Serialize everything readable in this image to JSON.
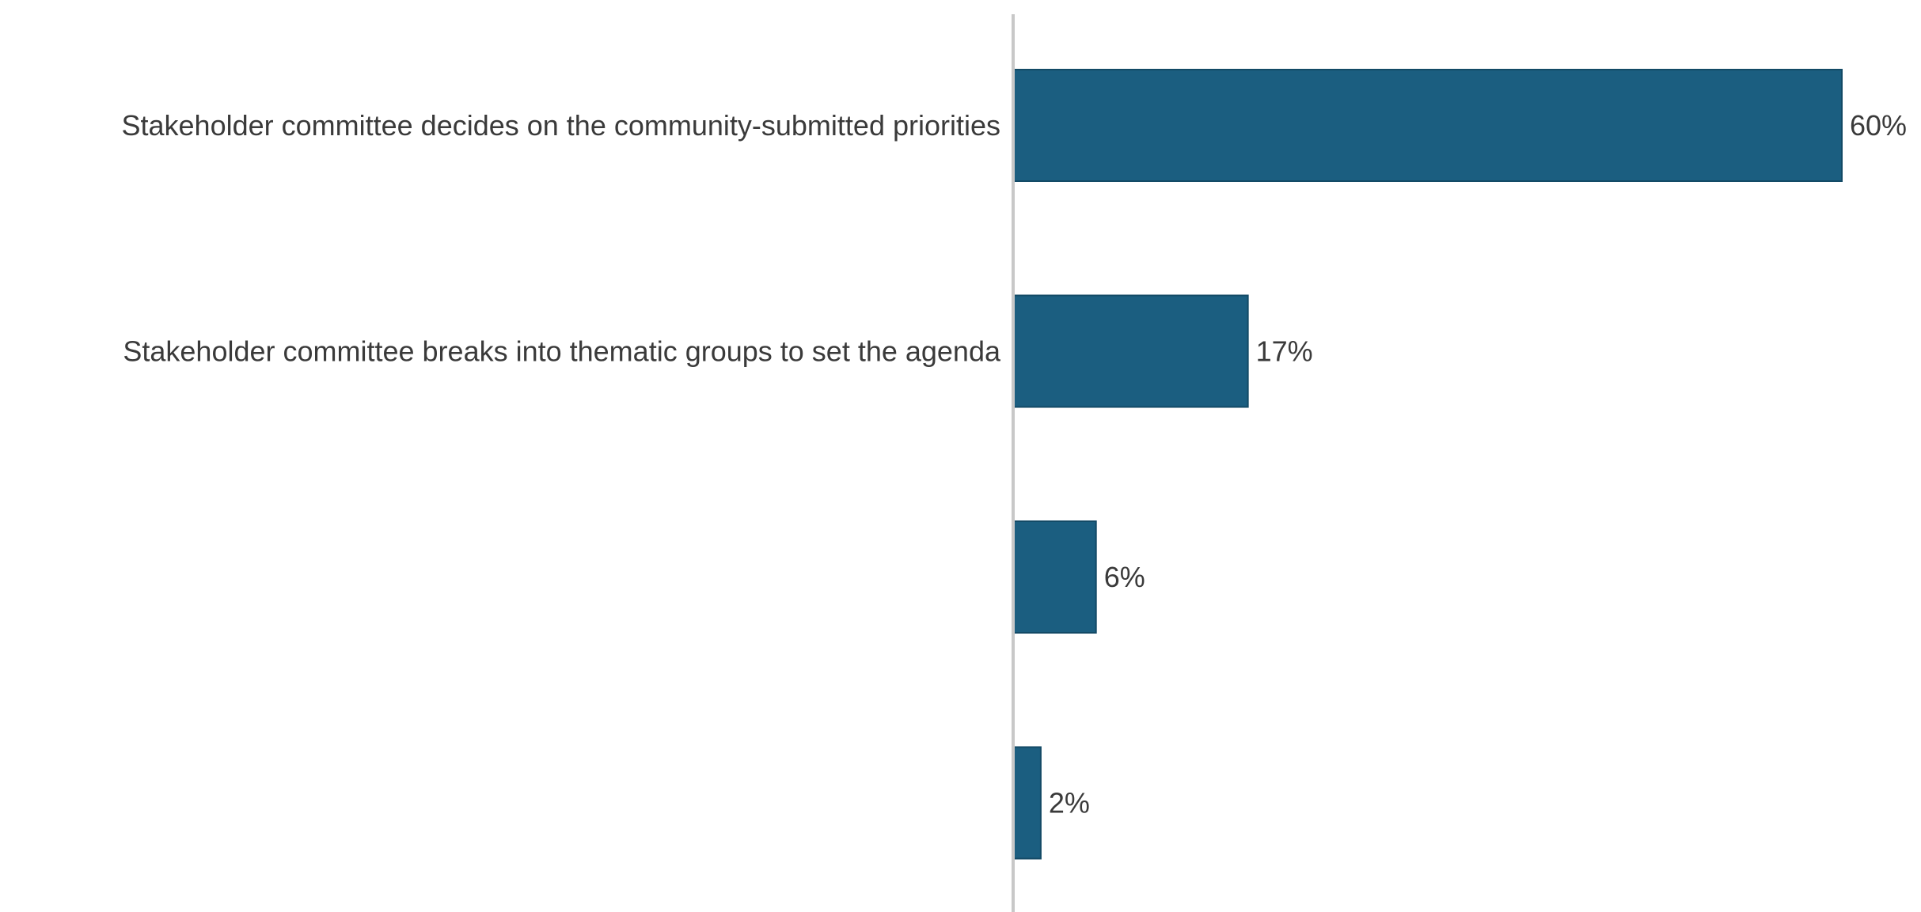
{
  "chart_data": {
    "type": "bar",
    "orientation": "horizontal",
    "categories": [
      "Stakeholder committee decides on the community-submitted priorities",
      "Stakeholder committee breaks into thematic groups to set the agenda",
      "",
      ""
    ],
    "values": [
      60,
      17,
      6,
      2
    ],
    "value_labels": [
      "60%",
      "17%",
      "6%",
      "2%"
    ],
    "unit": "%",
    "title": "",
    "xlabel": "",
    "ylabel": "",
    "xlim": [
      0,
      60
    ],
    "grid": false,
    "legend": "none",
    "colors": {
      "bar": "#1b5e80",
      "bar_edge": "#134a66",
      "axis": "#c8c8c8",
      "text": "#3a3a3a"
    }
  }
}
